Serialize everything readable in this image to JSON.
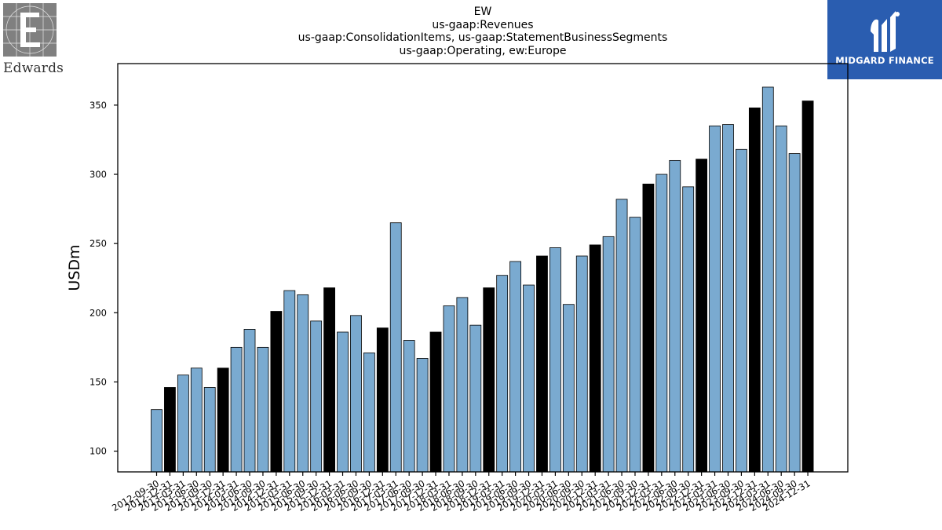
{
  "title_lines": [
    "EW",
    "us-gaap:Revenues",
    "us-gaap:ConsolidationItems, us-gaap:StatementBusinessSegments",
    "us-gaap:Operating, ew:Europe"
  ],
  "logos": {
    "left_wordmark": "Edwards",
    "right_wordmark": "MIDGARD FINANCE"
  },
  "colors": {
    "quarter_bar": "#7aaad0",
    "annual_bar": "#000000",
    "right_logo_bg": "#2a5db0"
  },
  "chart_data": {
    "type": "bar",
    "title": "EW",
    "ylabel": "USDm",
    "xlabel": "",
    "ylim": [
      85,
      380
    ],
    "yticks": [
      100,
      150,
      200,
      250,
      300,
      350
    ],
    "grid": false,
    "categories": [
      "2012-09-30",
      "2012-12-31",
      "2013-03-31",
      "2013-06-30",
      "2013-09-30",
      "2013-12-31",
      "2014-03-31",
      "2014-06-30",
      "2014-09-30",
      "2014-12-31",
      "2015-03-31",
      "2015-06-30",
      "2015-09-30",
      "2015-12-31",
      "2016-03-31",
      "2016-06-30",
      "2016-09-30",
      "2016-12-31",
      "2017-03-31",
      "2017-06-30",
      "2017-09-30",
      "2017-12-31",
      "2018-03-31",
      "2018-06-30",
      "2018-09-30",
      "2018-12-31",
      "2019-03-31",
      "2019-06-30",
      "2019-09-30",
      "2019-12-31",
      "2020-03-31",
      "2020-06-30",
      "2020-09-30",
      "2020-12-31",
      "2021-03-31",
      "2021-06-30",
      "2021-09-30",
      "2021-12-31",
      "2022-03-31",
      "2022-06-30",
      "2022-09-30",
      "2022-12-31",
      "2023-03-31",
      "2023-06-30",
      "2023-09-30",
      "2023-12-31",
      "2024-03-31",
      "2024-06-30",
      "2024-09-30",
      "2024-12-31"
    ],
    "values": [
      130,
      146,
      155,
      160,
      146,
      160,
      175,
      188,
      175,
      201,
      216,
      213,
      194,
      218,
      186,
      198,
      171,
      189,
      265,
      180,
      167,
      186,
      205,
      211,
      191,
      218,
      227,
      237,
      220,
      241,
      247,
      206,
      241,
      249,
      255,
      282,
      269,
      293,
      300,
      310,
      291,
      311,
      335,
      336,
      318,
      348,
      363,
      335,
      315,
      353
    ],
    "annual": [
      false,
      true,
      false,
      false,
      false,
      true,
      false,
      false,
      false,
      true,
      false,
      false,
      false,
      true,
      false,
      false,
      false,
      true,
      false,
      false,
      false,
      true,
      false,
      false,
      false,
      true,
      false,
      false,
      false,
      true,
      false,
      false,
      false,
      true,
      false,
      false,
      false,
      true,
      false,
      false,
      false,
      true,
      false,
      false,
      false,
      true,
      false,
      false,
      false,
      true
    ]
  }
}
